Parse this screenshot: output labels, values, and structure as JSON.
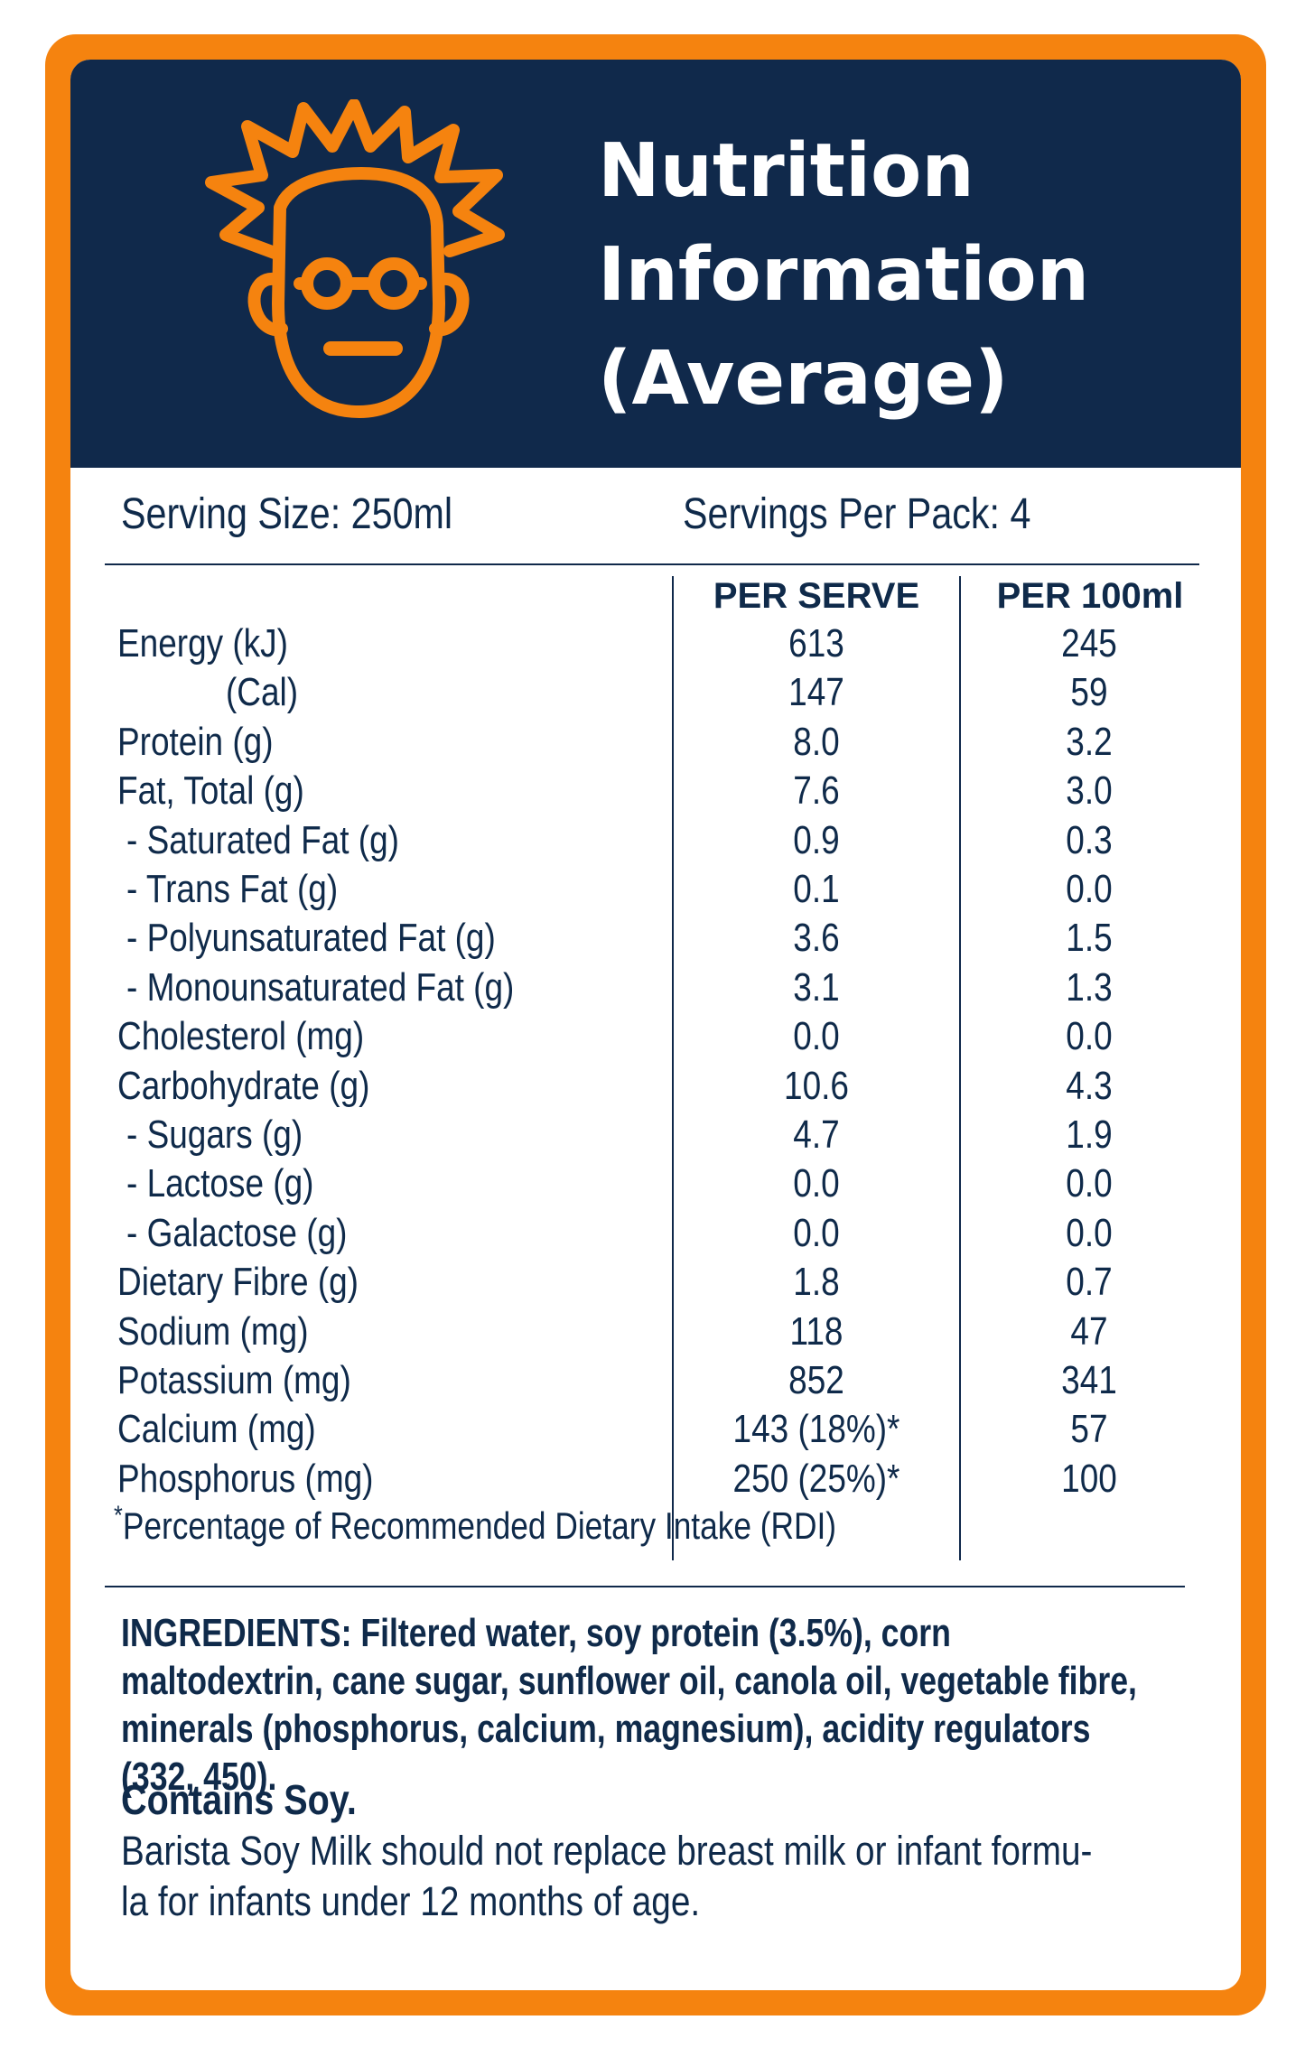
{
  "header": {
    "title_lines": [
      "Nutrition",
      "Information",
      "(Average)"
    ],
    "logo_icon": "scientist-face-icon",
    "logo_color": "#f5830f",
    "background_color": "#10294b"
  },
  "accent_color": "#f5830f",
  "serving": {
    "size": "Serving Size: 250ml",
    "per_pack": "Servings Per Pack: 4"
  },
  "table": {
    "columns": [
      "PER SERVE",
      "PER 100ml"
    ],
    "rows": [
      {
        "label": "Energy (kJ)",
        "per_serve": "613",
        "per_100ml": "245",
        "indent": 0
      },
      {
        "label": "(Cal)",
        "per_serve": "147",
        "per_100ml": "59",
        "indent": 2
      },
      {
        "label": "Protein (g)",
        "per_serve": "8.0",
        "per_100ml": "3.2",
        "indent": 0
      },
      {
        "label": "Fat, Total (g)",
        "per_serve": "7.6",
        "per_100ml": "3.0",
        "indent": 0
      },
      {
        "label": "- Saturated Fat (g)",
        "per_serve": "0.9",
        "per_100ml": "0.3",
        "indent": 1
      },
      {
        "label": "- Trans Fat (g)",
        "per_serve": "0.1",
        "per_100ml": "0.0",
        "indent": 1
      },
      {
        "label": "- Polyunsaturated Fat (g)",
        "per_serve": "3.6",
        "per_100ml": "1.5",
        "indent": 1
      },
      {
        "label": "- Monounsaturated Fat (g)",
        "per_serve": "3.1",
        "per_100ml": "1.3",
        "indent": 1
      },
      {
        "label": "Cholesterol (mg)",
        "per_serve": "0.0",
        "per_100ml": "0.0",
        "indent": 0
      },
      {
        "label": "Carbohydrate (g)",
        "per_serve": "10.6",
        "per_100ml": "4.3",
        "indent": 0
      },
      {
        "label": "- Sugars (g)",
        "per_serve": "4.7",
        "per_100ml": "1.9",
        "indent": 1
      },
      {
        "label": "- Lactose (g)",
        "per_serve": "0.0",
        "per_100ml": "0.0",
        "indent": 1
      },
      {
        "label": "- Galactose (g)",
        "per_serve": "0.0",
        "per_100ml": "0.0",
        "indent": 1
      },
      {
        "label": "Dietary Fibre (g)",
        "per_serve": "1.8",
        "per_100ml": "0.7",
        "indent": 0
      },
      {
        "label": "Sodium (mg)",
        "per_serve": "118",
        "per_100ml": "47",
        "indent": 0
      },
      {
        "label": "Potassium (mg)",
        "per_serve": "852",
        "per_100ml": "341",
        "indent": 0
      },
      {
        "label": "Calcium (mg)",
        "per_serve": "143 (18%)*",
        "per_100ml": "57",
        "indent": 0
      },
      {
        "label": "Phosphorus (mg)",
        "per_serve": "250 (25%)*",
        "per_100ml": "100",
        "indent": 0
      }
    ]
  },
  "footnote": {
    "mark": "*",
    "text": "Percentage of Recommended Dietary Intake (RDI)"
  },
  "ingredients": "INGREDIENTS: Filtered water, soy protein (3.5%), corn maltodextrin, cane sugar, sunflower oil, canola oil, vegetable fibre, minerals (phosphorus, calcium, magnesium), acidity regulators (332, 450).",
  "contains": "Contains Soy.",
  "warning_lines": [
    "Barista Soy Milk should not replace breast milk or infant formu-",
    "la for infants under 12 months of age."
  ]
}
